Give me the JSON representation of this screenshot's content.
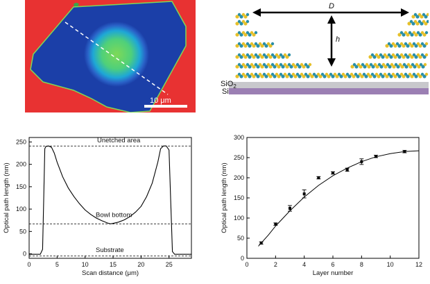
{
  "colors": {
    "map_background": "#e83232",
    "flake": "#1b3fa8",
    "bowl_center": "#7ed957",
    "bowl_ring": "#1ea7d6",
    "substrate_sio2": "#c8c8cc",
    "substrate_si": "#9b7fb3",
    "molecule_a": "#e6c02a",
    "molecule_b": "#2a8fa8"
  },
  "panel_a": {
    "scale_bar_label": "10 μm"
  },
  "panel_b": {
    "diameter_label": "D",
    "height_label": "h",
    "sio2_label": "SiO",
    "sio2_subscript": "2",
    "si_label": "Si"
  },
  "chart_data": [
    {
      "type": "line",
      "xlabel": "Scan distance (μm)",
      "ylabel": "Optical path length (nm)",
      "xlim": [
        0,
        29
      ],
      "ylim": [
        -10,
        260
      ],
      "xticks": [
        0,
        5,
        10,
        15,
        20,
        25
      ],
      "yticks": [
        0,
        50,
        100,
        150,
        200,
        250
      ],
      "reference_lines": [
        {
          "label": "Unetched area",
          "y": 241
        },
        {
          "label": "Bowl bottom",
          "y": 67
        },
        {
          "label": "Substrate",
          "y": -5
        }
      ],
      "series": [
        {
          "x": [
            0,
            1,
            2,
            2.4,
            2.6,
            2.8,
            3.0,
            3.5,
            4.0,
            4.5,
            5,
            6,
            7,
            8,
            9,
            10,
            11,
            12,
            13,
            14,
            14.5,
            15,
            16,
            17,
            18,
            19,
            20,
            21,
            22,
            23,
            23.5,
            24,
            24.5,
            25,
            25.3,
            25.6,
            26,
            27,
            28,
            29
          ],
          "y": [
            -1,
            -1,
            -1,
            10,
            120,
            235,
            240,
            241,
            238,
            225,
            205,
            172,
            147,
            128,
            112,
            98,
            88,
            80,
            74,
            69,
            67,
            68,
            71,
            76,
            83,
            93,
            106,
            128,
            158,
            205,
            235,
            241,
            241,
            232,
            120,
            5,
            -1,
            -1,
            -1,
            -1
          ]
        }
      ]
    },
    {
      "type": "line",
      "xlabel": "Layer number",
      "ylabel": "Optical path length (nm)",
      "xlim": [
        0,
        12
      ],
      "ylim": [
        0,
        300
      ],
      "xticks": [
        0,
        2,
        4,
        6,
        8,
        10,
        12
      ],
      "yticks": [
        0,
        50,
        100,
        150,
        200,
        250,
        300
      ],
      "series": [
        {
          "x": [
            1,
            2,
            3,
            4,
            5,
            6,
            7,
            8,
            9,
            11
          ],
          "y": [
            38,
            85,
            124,
            160,
            200,
            212,
            220,
            240,
            253,
            265
          ],
          "error": [
            3,
            3,
            7,
            10,
            3,
            3,
            4,
            7,
            3,
            3
          ]
        }
      ],
      "fit_curve": {
        "x": [
          0.8,
          1.5,
          2,
          3,
          4,
          5,
          6,
          7,
          8,
          9,
          10,
          11,
          12
        ],
        "y": [
          30,
          58,
          80,
          118,
          152,
          181,
          205,
          224,
          240,
          252,
          260,
          265,
          267
        ]
      }
    }
  ]
}
